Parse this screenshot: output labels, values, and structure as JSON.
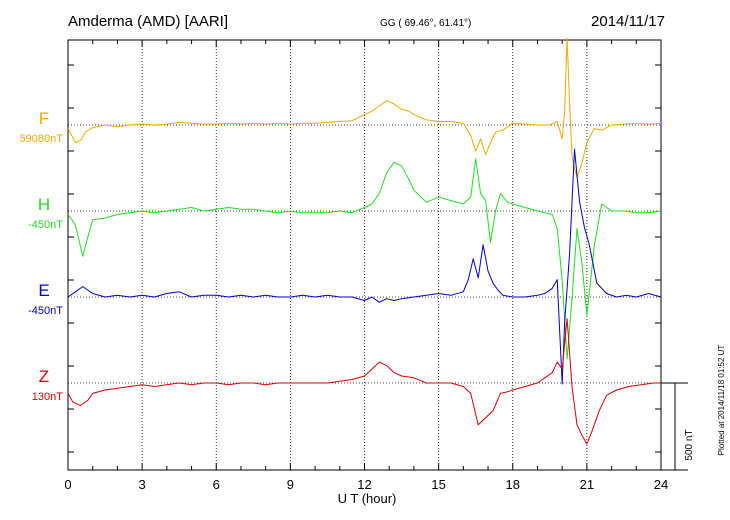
{
  "header": {
    "station": "Amderma (AMD)  [AARI]",
    "coords": "GG ( 69.46°,  61.41°)",
    "date": "2014/11/17"
  },
  "footer": {
    "plotted": "Plotted at 2014/11/18 01:52 UT"
  },
  "chart_data": {
    "type": "line",
    "xlabel": "U T (hour)",
    "xlim": [
      0,
      24
    ],
    "x_ticks": [
      0,
      3,
      6,
      9,
      12,
      15,
      18,
      21,
      24
    ],
    "x_tick_labels": [
      "0",
      "3",
      "6",
      "9",
      "12",
      "15",
      "18",
      "21",
      "24"
    ],
    "grid": true,
    "scale_bar": {
      "label": "500 nT",
      "value_nT": 500
    },
    "series": [
      {
        "name": "F",
        "baseline_label": "59080nT",
        "color": "#f5a800",
        "x": [
          0,
          0.3,
          0.5,
          0.7,
          1,
          1.5,
          2,
          2.5,
          3,
          3.5,
          4,
          4.5,
          5,
          5.5,
          6,
          6.5,
          7,
          7.5,
          8,
          8.5,
          9,
          9.5,
          10,
          10.5,
          11,
          11.5,
          12,
          12.3,
          12.6,
          12.9,
          13.2,
          13.5,
          13.8,
          14,
          14.5,
          15,
          15.5,
          16,
          16.3,
          16.5,
          16.7,
          16.9,
          17.1,
          17.3,
          17.6,
          18,
          18.5,
          19,
          19.5,
          19.8,
          20.0,
          20.1,
          20.2,
          20.3,
          20.4,
          20.5,
          20.6,
          20.8,
          21.0,
          21.3,
          21.6,
          22,
          22.5,
          23,
          23.5,
          24
        ],
        "values": [
          -20,
          -100,
          -90,
          -40,
          -15,
          0,
          -10,
          0,
          5,
          0,
          5,
          15,
          10,
          5,
          5,
          10,
          5,
          10,
          5,
          10,
          5,
          10,
          10,
          15,
          20,
          25,
          60,
          80,
          110,
          140,
          120,
          90,
          80,
          60,
          30,
          20,
          20,
          10,
          -60,
          -150,
          -80,
          -170,
          -100,
          -40,
          -30,
          10,
          5,
          0,
          0,
          20,
          -80,
          80,
          500,
          120,
          -180,
          -250,
          -300,
          -220,
          -100,
          -20,
          -30,
          0,
          5,
          10,
          5,
          10
        ]
      },
      {
        "name": "H",
        "baseline_label": "-450nT",
        "color": "#22dd22",
        "x": [
          0,
          0.3,
          0.6,
          0.8,
          1,
          1.5,
          2,
          2.5,
          3,
          3.5,
          4,
          4.5,
          5,
          5.5,
          6,
          6.5,
          7,
          7.5,
          8,
          8.5,
          9,
          9.5,
          10,
          10.5,
          11,
          11.5,
          12,
          12.3,
          12.6,
          12.9,
          13.2,
          13.5,
          13.8,
          14,
          14.5,
          15,
          15.5,
          16,
          16.3,
          16.5,
          16.7,
          16.9,
          17.1,
          17.3,
          17.5,
          17.8,
          18,
          18.5,
          19,
          19.3,
          19.6,
          19.8,
          20.0,
          20.2,
          20.4,
          20.6,
          20.8,
          21.0,
          21.3,
          21.6,
          22,
          22.5,
          23,
          23.5,
          24
        ],
        "values": [
          -20,
          -80,
          -260,
          -150,
          -50,
          -40,
          -20,
          -10,
          0,
          -10,
          0,
          10,
          20,
          0,
          10,
          20,
          10,
          10,
          0,
          -10,
          0,
          -10,
          -10,
          -10,
          0,
          -10,
          20,
          40,
          100,
          220,
          280,
          260,
          180,
          120,
          50,
          80,
          60,
          40,
          80,
          300,
          100,
          60,
          -180,
          0,
          100,
          50,
          40,
          20,
          0,
          -10,
          -20,
          -100,
          -400,
          -850,
          -500,
          -100,
          -300,
          -600,
          -200,
          40,
          0,
          0,
          -10,
          -10,
          0
        ]
      },
      {
        "name": "E",
        "baseline_label": "-450nT",
        "color": "#0000cc",
        "x": [
          0,
          0.3,
          0.6,
          1,
          1.5,
          2,
          2.5,
          3,
          3.5,
          4,
          4.5,
          5,
          5.5,
          6,
          6.5,
          7,
          7.5,
          8,
          8.5,
          9,
          9.5,
          10,
          10.5,
          11,
          11.5,
          12,
          12.3,
          12.6,
          12.9,
          13.2,
          13.5,
          14,
          14.5,
          15,
          15.5,
          16,
          16.2,
          16.4,
          16.6,
          16.8,
          17.0,
          17.2,
          17.4,
          17.6,
          18,
          18.5,
          19,
          19.3,
          19.6,
          19.8,
          20.0,
          20.1,
          20.3,
          20.5,
          20.7,
          20.9,
          21.1,
          21.4,
          21.8,
          22.2,
          22.6,
          23,
          23.5,
          24
        ],
        "values": [
          0,
          30,
          60,
          20,
          0,
          10,
          0,
          10,
          0,
          20,
          30,
          0,
          10,
          10,
          0,
          10,
          0,
          10,
          0,
          0,
          10,
          0,
          10,
          0,
          0,
          -20,
          0,
          -30,
          -10,
          -20,
          -10,
          0,
          10,
          20,
          10,
          30,
          100,
          220,
          110,
          300,
          150,
          80,
          40,
          10,
          0,
          0,
          10,
          20,
          50,
          100,
          -500,
          -150,
          250,
          850,
          550,
          400,
          300,
          80,
          20,
          0,
          10,
          0,
          20,
          0
        ]
      },
      {
        "name": "Z",
        "baseline_label": "130nT",
        "color": "#dd0000",
        "x": [
          0,
          0.2,
          0.5,
          0.8,
          1,
          1.5,
          2,
          2.5,
          3,
          3.5,
          4,
          4.5,
          5,
          5.5,
          6,
          6.5,
          7,
          7.5,
          8,
          8.5,
          9,
          9.5,
          10,
          10.5,
          11,
          11.5,
          12,
          12.3,
          12.6,
          12.9,
          13.2,
          13.5,
          14,
          14.5,
          15,
          15.5,
          16,
          16.3,
          16.6,
          16.9,
          17.2,
          17.5,
          17.8,
          18,
          18.5,
          19,
          19.3,
          19.6,
          19.8,
          20.0,
          20.2,
          20.4,
          20.6,
          20.8,
          21.0,
          21.2,
          21.5,
          21.8,
          22.2,
          22.7,
          23.2,
          23.7,
          24
        ],
        "values": [
          -60,
          -110,
          -130,
          -100,
          -60,
          -40,
          -30,
          -20,
          -10,
          -20,
          -10,
          0,
          -10,
          0,
          0,
          -10,
          0,
          0,
          -10,
          0,
          0,
          0,
          0,
          0,
          10,
          20,
          40,
          80,
          120,
          100,
          60,
          40,
          30,
          0,
          0,
          0,
          -20,
          -60,
          -240,
          -200,
          -160,
          -60,
          -50,
          -40,
          -20,
          0,
          30,
          60,
          120,
          80,
          370,
          -20,
          -240,
          -300,
          -350,
          -280,
          -160,
          -70,
          -40,
          -20,
          -10,
          0,
          0
        ]
      }
    ]
  }
}
